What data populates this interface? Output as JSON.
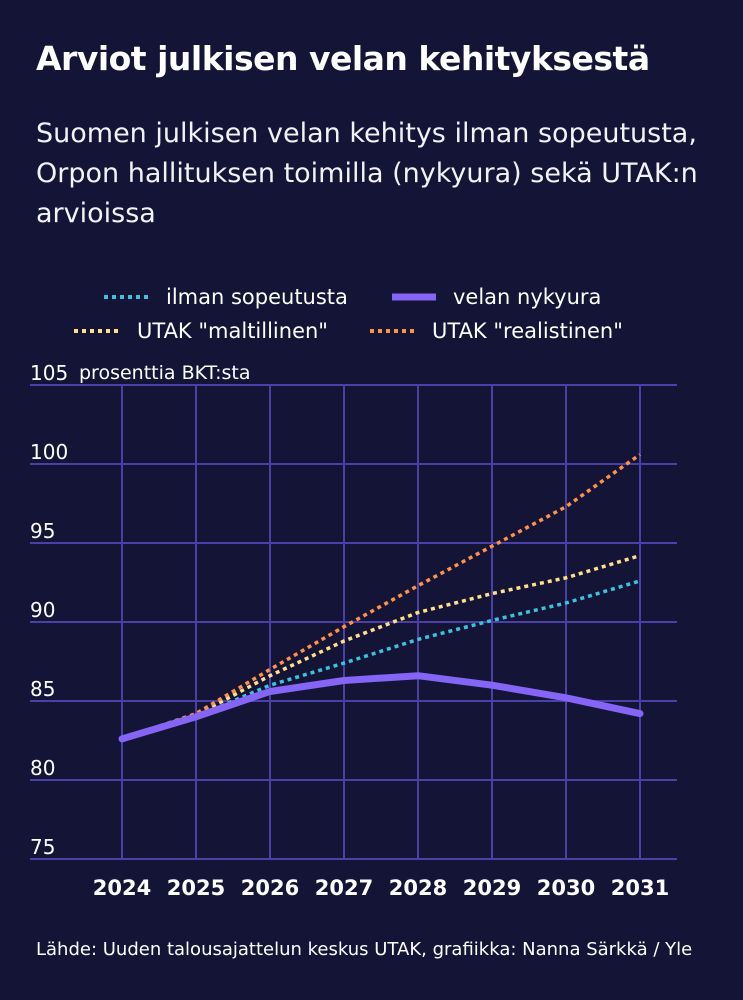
{
  "chart_data": {
    "type": "line",
    "title": "Arviot julkisen velan kehityksestä",
    "subtitle": "Suomen julkisen velan kehitys ilman sopeutusta, Orpon hallituksen toimilla (nykyura) sekä UTAK:n arvioissa",
    "ylabel": "prosenttia BKT:sta",
    "xlabel": "",
    "x": [
      2024,
      2025,
      2026,
      2027,
      2028,
      2029,
      2030,
      2031
    ],
    "xticks": [
      "2024",
      "2025",
      "2026",
      "2027",
      "2028",
      "2029",
      "2030",
      "2031"
    ],
    "ylim": [
      75,
      105
    ],
    "yticks": [
      75,
      80,
      85,
      90,
      95,
      100,
      105
    ],
    "grid": true,
    "legend_position": "top",
    "series": [
      {
        "name": "ilman sopeutusta",
        "style": "dotted",
        "color": "#3cc3dc",
        "values": [
          82.6,
          84.0,
          86.0,
          87.4,
          88.9,
          90.1,
          91.2,
          92.6
        ]
      },
      {
        "name": "velan nykyura",
        "style": "solid",
        "color": "#8465f5",
        "values": [
          82.6,
          84.0,
          85.6,
          86.3,
          86.6,
          86.0,
          85.2,
          84.2
        ]
      },
      {
        "name": "UTAK \"maltillinen\"",
        "style": "dotted",
        "color": "#ffe08a",
        "values": [
          82.6,
          84.1,
          86.6,
          88.8,
          90.6,
          91.8,
          92.8,
          94.2
        ]
      },
      {
        "name": "UTAK \"realistinen\"",
        "style": "dotted",
        "color": "#ff9248",
        "values": [
          82.6,
          84.2,
          87.0,
          89.7,
          92.3,
          94.8,
          97.3,
          100.6
        ]
      }
    ],
    "source": "Lähde: Uuden talousajattelun keskus UTAK, grafiikka: Nanna Särkkä / Yle"
  },
  "colors": {
    "background": "#141437",
    "grid": "#4b3fa8"
  }
}
